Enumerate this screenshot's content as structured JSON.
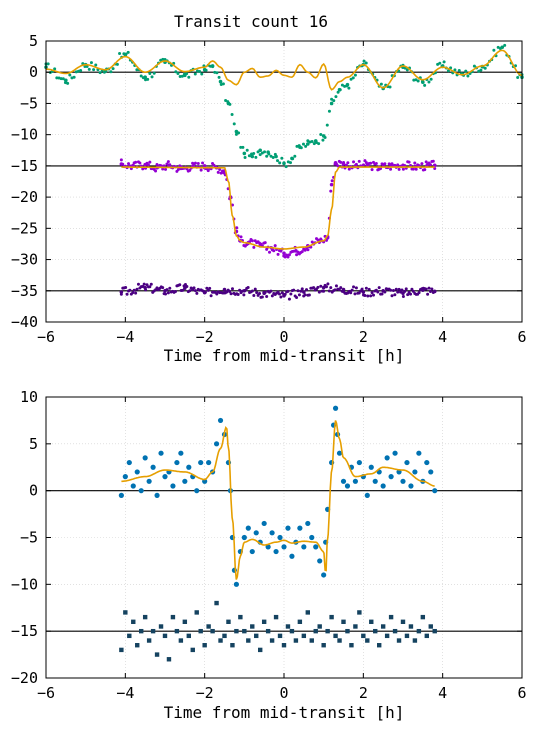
{
  "chart_data": [
    {
      "type": "scatter",
      "title": "Transit count 16",
      "xlabel": "Time from mid-transit [h]",
      "ylabel": "",
      "xlim": [
        -6,
        6
      ],
      "ylim": [
        -40,
        5
      ],
      "xticks": [
        -6,
        -4,
        -2,
        0,
        2,
        4,
        6
      ],
      "yticks": [
        5,
        0,
        -5,
        -10,
        -15,
        -20,
        -25,
        -30,
        -35,
        -40
      ],
      "grid": true,
      "reference_lines": [
        0,
        -15,
        -35
      ],
      "series": [
        {
          "role": "raw light curve",
          "marker": "dot",
          "color": "#009e73",
          "offset": 0,
          "x": [
            -6,
            -5.5,
            -5,
            -4.5,
            -4,
            -3.5,
            -3,
            -2.5,
            -2,
            -1.8,
            -1.6,
            -1.4,
            -1.2,
            -1.0,
            -0.8,
            -0.6,
            -0.4,
            -0.2,
            0,
            0.2,
            0.4,
            0.6,
            0.8,
            1.0,
            1.2,
            1.4,
            1.6,
            2,
            2.5,
            3,
            3.5,
            4,
            4.5,
            5,
            5.5,
            6
          ],
          "y": [
            0.8,
            -1.3,
            1.2,
            0.2,
            2.8,
            -0.8,
            1.6,
            -0.5,
            0.4,
            1.0,
            -1.5,
            -5.0,
            -9.5,
            -13.0,
            -13.5,
            -12.5,
            -12.8,
            -13.5,
            -14.6,
            -13.8,
            -12.0,
            -11.5,
            -11.0,
            -10.2,
            -5.0,
            -2.8,
            -2.0,
            1.2,
            -2.6,
            0.8,
            -1.6,
            1.0,
            -0.3,
            0.9,
            4.0,
            -0.8
          ]
        },
        {
          "role": "stellar variability model",
          "marker": "line",
          "color": "#e69f00",
          "offset": 0,
          "x": [
            -6,
            -5.5,
            -5,
            -4.5,
            -4,
            -3.5,
            -3,
            -2.5,
            -2,
            -1.8,
            -1.6,
            -1.4,
            -1.2,
            -1.0,
            -0.8,
            -0.6,
            -0.4,
            -0.2,
            0,
            0.2,
            0.4,
            0.6,
            0.8,
            1.0,
            1.2,
            1.4,
            1.6,
            2,
            2.5,
            3,
            3.5,
            4,
            4.5,
            5,
            5.5,
            6
          ],
          "y": [
            0.5,
            -0.2,
            1.2,
            0.4,
            2.5,
            0.0,
            1.8,
            0.1,
            0.8,
            1.8,
            0.8,
            -1.3,
            -2.0,
            0.0,
            0.6,
            -0.8,
            -0.6,
            0.3,
            -0.5,
            -0.8,
            1.2,
            0.0,
            -0.9,
            1.3,
            -2.8,
            -1.5,
            -0.8,
            1.2,
            -2.5,
            1.0,
            -1.2,
            0.8,
            -0.4,
            1.0,
            3.5,
            -0.5
          ]
        },
        {
          "role": "detrended transit",
          "marker": "dot",
          "color": "#9400d3",
          "offset": -15,
          "x": [
            -4.1,
            -3.8,
            -3.5,
            -3.2,
            -2.9,
            -2.6,
            -2.3,
            -2.0,
            -1.7,
            -1.5,
            -1.35,
            -1.2,
            -1.1,
            -0.9,
            -0.6,
            -0.3,
            0,
            0.3,
            0.6,
            0.9,
            1.1,
            1.2,
            1.3,
            1.5,
            1.8,
            2.1,
            2.4,
            2.7,
            3.0,
            3.3,
            3.6,
            3.8
          ],
          "y": [
            -14.7,
            -15.0,
            -14.8,
            -15.3,
            -14.9,
            -15.4,
            -15.1,
            -15.0,
            -15.3,
            -15.8,
            -20.0,
            -25.5,
            -27.0,
            -27.3,
            -27.8,
            -28.2,
            -29.0,
            -28.6,
            -27.8,
            -27.0,
            -26.5,
            -18.0,
            -14.5,
            -14.7,
            -15.0,
            -14.8,
            -15.2,
            -15.0,
            -14.9,
            -15.1,
            -15.0,
            -14.9
          ]
        },
        {
          "role": "transit model",
          "marker": "line",
          "color": "#e69f00",
          "offset": -15,
          "x": [
            -4.1,
            -1.5,
            -1.4,
            -1.3,
            -1.2,
            -1.1,
            -1.0,
            -0.5,
            0,
            0.5,
            1.0,
            1.1,
            1.2,
            1.3,
            1.4,
            3.8
          ],
          "y": [
            -15.2,
            -15.3,
            -17.5,
            -23.0,
            -26.2,
            -27.0,
            -27.3,
            -28.0,
            -28.3,
            -28.0,
            -27.0,
            -26.2,
            -22.0,
            -16.0,
            -15.2,
            -15.2
          ]
        },
        {
          "role": "residuals",
          "marker": "dot",
          "color": "#4b0082",
          "offset": -35,
          "x": [
            -4.1,
            -3.5,
            -3.0,
            -2.5,
            -2.0,
            -1.5,
            -1.0,
            -0.5,
            0,
            0.5,
            1.0,
            1.5,
            2.0,
            2.5,
            3.0,
            3.5,
            3.8
          ],
          "y": [
            -35.2,
            -34.5,
            -35.0,
            -34.6,
            -35.3,
            -34.8,
            -35.0,
            -35.4,
            -35.8,
            -35.2,
            -34.5,
            -34.8,
            -35.2,
            -35.0,
            -35.4,
            -34.9,
            -35.1
          ]
        }
      ]
    },
    {
      "type": "scatter",
      "title": "",
      "xlabel": "Time from mid-transit [h]",
      "ylabel": "",
      "xlim": [
        -6,
        6
      ],
      "ylim": [
        -20,
        10
      ],
      "xticks": [
        -6,
        -4,
        -2,
        0,
        2,
        4,
        6
      ],
      "yticks": [
        10,
        5,
        0,
        -5,
        -10,
        -15,
        -20
      ],
      "grid": true,
      "reference_lines": [
        0,
        -15
      ],
      "series": [
        {
          "role": "data",
          "marker": "circle",
          "color": "#0072b2",
          "x": [
            -4.1,
            -4.0,
            -3.9,
            -3.8,
            -3.7,
            -3.6,
            -3.5,
            -3.4,
            -3.3,
            -3.2,
            -3.1,
            -3.0,
            -2.9,
            -2.8,
            -2.7,
            -2.6,
            -2.5,
            -2.4,
            -2.3,
            -2.2,
            -2.1,
            -2.0,
            -1.9,
            -1.8,
            -1.7,
            -1.6,
            -1.5,
            -1.4,
            -1.35,
            -1.3,
            -1.25,
            -1.2,
            -1.1,
            -1.0,
            -0.9,
            -0.8,
            -0.7,
            -0.6,
            -0.5,
            -0.4,
            -0.3,
            -0.2,
            -0.1,
            0,
            0.1,
            0.2,
            0.3,
            0.4,
            0.5,
            0.6,
            0.7,
            0.8,
            0.9,
            1.0,
            1.05,
            1.1,
            1.2,
            1.25,
            1.3,
            1.35,
            1.4,
            1.5,
            1.6,
            1.7,
            1.8,
            1.9,
            2.0,
            2.1,
            2.2,
            2.3,
            2.4,
            2.5,
            2.6,
            2.7,
            2.8,
            2.9,
            3.0,
            3.1,
            3.2,
            3.3,
            3.4,
            3.5,
            3.6,
            3.7,
            3.8
          ],
          "y": [
            -0.5,
            1.5,
            3.0,
            0.5,
            2.0,
            0.0,
            3.5,
            1.0,
            2.5,
            -0.5,
            4.0,
            1.5,
            2.0,
            0.5,
            3.0,
            4.0,
            1.0,
            2.5,
            1.5,
            0.0,
            3.0,
            1.0,
            3.0,
            2.0,
            5.0,
            7.5,
            6.0,
            3.0,
            0.0,
            -5.0,
            -8.5,
            -10.0,
            -6.5,
            -5.0,
            -4.0,
            -6.5,
            -4.5,
            -5.5,
            -3.5,
            -6.0,
            -4.5,
            -6.5,
            -5.0,
            -6.0,
            -4.0,
            -7.0,
            -5.5,
            -4.0,
            -6.0,
            -3.5,
            -5.0,
            -6.0,
            -7.5,
            -9.0,
            -5.5,
            -2.0,
            3.0,
            7.0,
            8.8,
            6.0,
            4.0,
            1.0,
            0.5,
            2.5,
            1.0,
            3.0,
            1.5,
            -0.5,
            2.5,
            1.0,
            2.0,
            0.5,
            3.5,
            1.5,
            4.0,
            2.0,
            1.0,
            3.0,
            0.5,
            2.0,
            4.0,
            1.0,
            3.0,
            2.0,
            0.0
          ]
        },
        {
          "role": "model",
          "marker": "line",
          "color": "#e69f00",
          "x": [
            -4.1,
            -3.5,
            -3.0,
            -2.5,
            -2.0,
            -1.8,
            -1.6,
            -1.45,
            -1.4,
            -1.3,
            -1.2,
            -1.1,
            -1.0,
            -0.8,
            -0.5,
            -0.2,
            0,
            0.2,
            0.5,
            0.8,
            1.0,
            1.05,
            1.1,
            1.2,
            1.3,
            1.4,
            1.5,
            1.8,
            2.2,
            2.5,
            3.0,
            3.5,
            3.8
          ],
          "y": [
            1.0,
            1.5,
            2.2,
            2.0,
            1.2,
            2.0,
            4.5,
            6.8,
            4.5,
            -3.0,
            -9.5,
            -7.0,
            -5.5,
            -5.2,
            -5.8,
            -5.5,
            -5.3,
            -5.6,
            -5.4,
            -5.5,
            -6.5,
            -9.0,
            -5.0,
            2.0,
            7.5,
            5.5,
            3.5,
            1.5,
            1.8,
            2.5,
            2.2,
            1.0,
            0.5
          ]
        },
        {
          "role": "residuals",
          "marker": "square",
          "color": "#154360",
          "offset": -15,
          "x": [
            -4.1,
            -4.0,
            -3.9,
            -3.8,
            -3.7,
            -3.6,
            -3.5,
            -3.4,
            -3.3,
            -3.2,
            -3.1,
            -3.0,
            -2.9,
            -2.8,
            -2.7,
            -2.6,
            -2.5,
            -2.4,
            -2.3,
            -2.2,
            -2.1,
            -2.0,
            -1.9,
            -1.8,
            -1.7,
            -1.6,
            -1.5,
            -1.4,
            -1.3,
            -1.2,
            -1.1,
            -1.0,
            -0.9,
            -0.8,
            -0.7,
            -0.6,
            -0.5,
            -0.4,
            -0.3,
            -0.2,
            -0.1,
            0,
            0.1,
            0.2,
            0.3,
            0.4,
            0.5,
            0.6,
            0.7,
            0.8,
            0.9,
            1.0,
            1.1,
            1.2,
            1.3,
            1.4,
            1.5,
            1.6,
            1.7,
            1.8,
            1.9,
            2.0,
            2.1,
            2.2,
            2.3,
            2.4,
            2.5,
            2.6,
            2.7,
            2.8,
            2.9,
            3.0,
            3.1,
            3.2,
            3.3,
            3.4,
            3.5,
            3.6,
            3.7,
            3.8
          ],
          "y": [
            -17.0,
            -13.0,
            -15.5,
            -14.0,
            -16.5,
            -15.0,
            -13.5,
            -16.0,
            -15.0,
            -17.5,
            -14.5,
            -15.5,
            -18.0,
            -13.5,
            -15.0,
            -16.0,
            -14.0,
            -15.5,
            -17.0,
            -13.0,
            -15.0,
            -16.5,
            -14.5,
            -15.0,
            -12.0,
            -16.0,
            -15.5,
            -14.0,
            -16.5,
            -15.0,
            -13.5,
            -15.0,
            -16.0,
            -14.5,
            -15.5,
            -17.0,
            -14.0,
            -15.0,
            -16.0,
            -13.5,
            -15.5,
            -16.5,
            -14.5,
            -15.0,
            -16.0,
            -14.0,
            -15.5,
            -13.0,
            -16.0,
            -15.0,
            -14.5,
            -16.5,
            -15.0,
            -13.5,
            -15.5,
            -16.0,
            -14.0,
            -15.0,
            -16.5,
            -14.5,
            -13.0,
            -15.5,
            -16.0,
            -14.0,
            -15.0,
            -16.5,
            -14.5,
            -15.5,
            -13.5,
            -15.0,
            -16.0,
            -14.0,
            -15.5,
            -14.5,
            -16.0,
            -15.0,
            -13.5,
            -15.5,
            -14.5,
            -15.0
          ]
        }
      ]
    }
  ]
}
